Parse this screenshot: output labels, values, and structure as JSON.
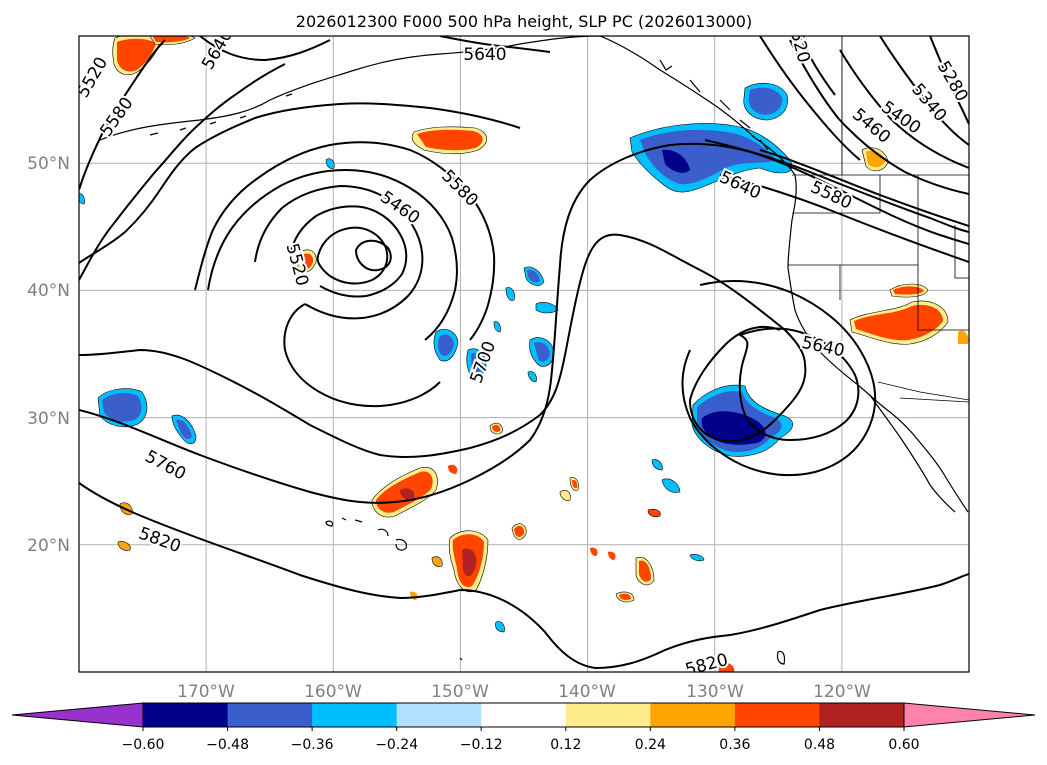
{
  "title": "2026012300 F000 500 hPa height, SLP PC (2026013000)",
  "colors": {
    "lt_purple": "#9932cc",
    "lt_navy": "#00008b",
    "lt_royal": "#3a5fcd",
    "lt_sky": "#00bfff",
    "lt_pale": "#b0e2ff",
    "white": "#ffffff",
    "gt_khaki": "#ffec8b",
    "gt_orange": "#ffa500",
    "gt_redorange": "#ff4500",
    "gt_firebrick": "#b22222",
    "gt_pink": "#ff82ab",
    "grid": "#b0b0b0",
    "axis_label": "#808080"
  },
  "map": {
    "lon_range": [
      -180,
      -110
    ],
    "lat_range": [
      10,
      60
    ],
    "lat_labels": [
      "50°N",
      "40°N",
      "30°N",
      "20°N"
    ],
    "lon_labels": [
      "170°W",
      "160°W",
      "150°W",
      "140°W",
      "130°W",
      "120°W"
    ]
  },
  "contour_labels": [
    "5520",
    "5580",
    "5640",
    "5460",
    "5580",
    "5520",
    "5640",
    "5580",
    "5640",
    "5700",
    "5640",
    "5760",
    "5820",
    "5820",
    "5400",
    "5340",
    "5280",
    "5460",
    "520"
  ],
  "colorbar": {
    "levels": [
      "−0.60",
      "−0.48",
      "−0.36",
      "−0.24",
      "−0.12",
      "0.12",
      "0.24",
      "0.36",
      "0.48",
      "0.60"
    ],
    "bins": [
      "#00008b",
      "#3a5fcd",
      "#00bfff",
      "#b0e2ff",
      "#ffffff",
      "#ffec8b",
      "#ffa500",
      "#ff4500",
      "#b22222"
    ],
    "under": "#9932cc",
    "over": "#ff82ab"
  },
  "chart_data": {
    "type": "contour-map",
    "title": "2026012300 F000 500 hPa height, SLP PC (2026013000)",
    "field_contours": "500 hPa geopotential height (m)",
    "field_shaded": "SLP PC",
    "contour_levels": [
      5280,
      5340,
      5400,
      5460,
      5520,
      5580,
      5640,
      5700,
      5760,
      5820
    ],
    "shading_levels": [
      -0.6,
      -0.48,
      -0.36,
      -0.24,
      -0.12,
      0.12,
      0.24,
      0.36,
      0.48,
      0.6
    ],
    "features": [
      {
        "name": "closed low",
        "lon": -160,
        "lat": 42,
        "min_contour": 5460
      },
      {
        "name": "closed low",
        "lon": -124,
        "lat": 30,
        "min_contour": 5640
      },
      {
        "name": "ridge",
        "lon": -143,
        "lat": 50
      },
      {
        "name": "negative center",
        "lon": -131,
        "lat": 48,
        "value": -0.5
      },
      {
        "name": "negative center",
        "lon": -127,
        "lat": 30,
        "value": -0.55
      },
      {
        "name": "positive center",
        "lon": -149,
        "lat": 19,
        "value": 0.5
      }
    ]
  }
}
